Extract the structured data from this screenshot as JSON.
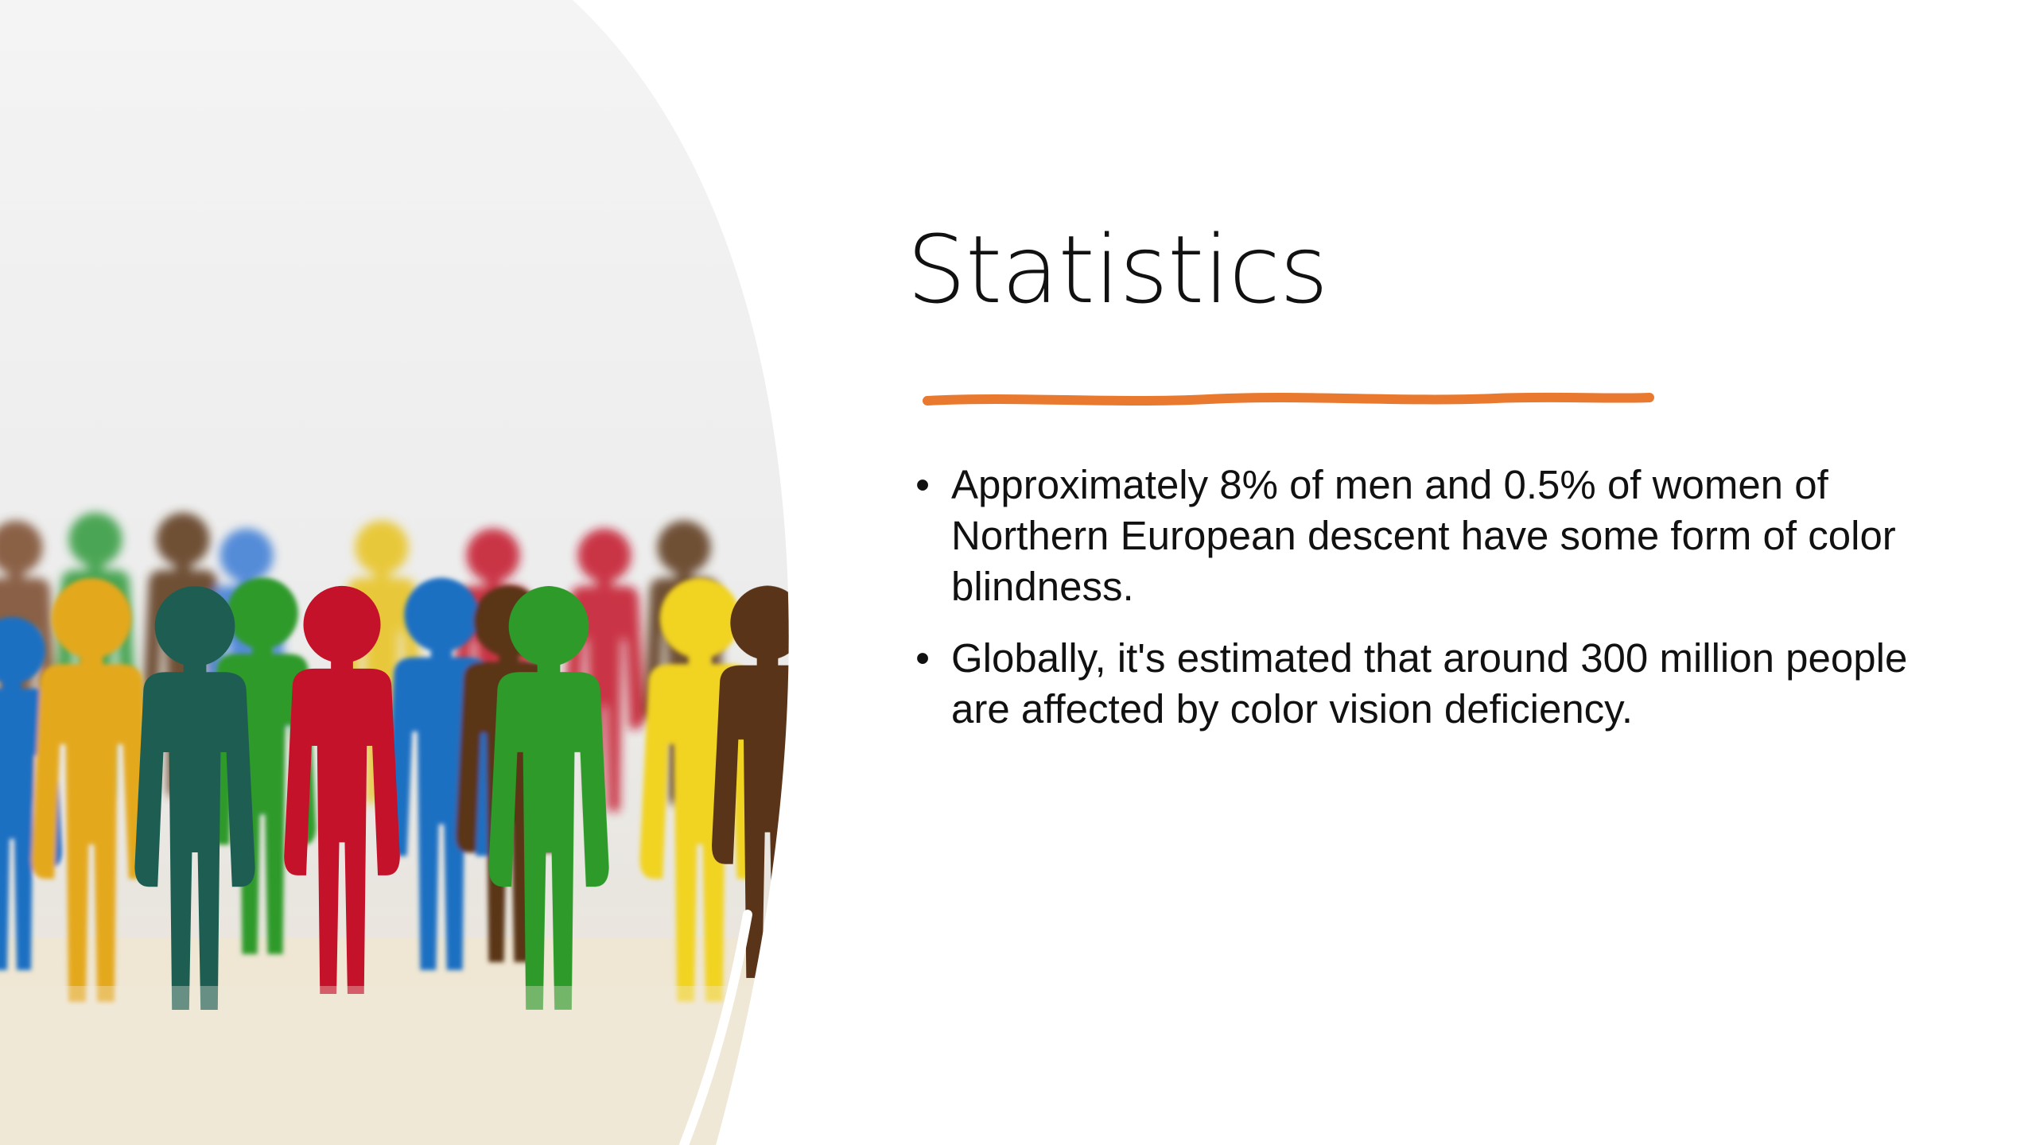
{
  "slide": {
    "title": "Statistics",
    "accent_color": "#E8792F",
    "bullet_symbol": "•",
    "bullets": [
      {
        "text": "Approximately 8% of men and 0.5% of women of Northern European descent have some form of color blindness."
      },
      {
        "text": "Globally, it's estimated that around 300 million people are affected by color vision deficiency."
      }
    ]
  },
  "image": {
    "subject": "colorful-wooden-people-figures",
    "colors": [
      "#1E5E52",
      "#C4122A",
      "#2E9A2A",
      "#E4A81C",
      "#F1D321",
      "#5A3418",
      "#1F6FC2"
    ]
  }
}
